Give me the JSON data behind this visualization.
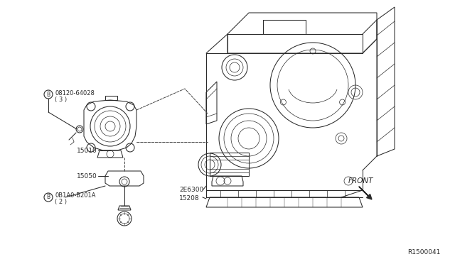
{
  "bg_color": "#ffffff",
  "ref_number": "R1500041",
  "line_color": "#2a2a2a",
  "text_color": "#2a2a2a",
  "dash_color": "#444444",
  "lw_main": 0.75,
  "lw_thin": 0.5,
  "lw_thick": 1.0,
  "labels": {
    "bolt_top_num": "08120-64028",
    "bolt_top_qty": "( 3 )",
    "pump": "15010",
    "bracket": "15050",
    "bolt_bot_num": "0B1A0-B201A",
    "bolt_bot_qty": "( 2 )",
    "filter_brkt": "2E6300",
    "filter": "15208",
    "front": "FRONT"
  }
}
